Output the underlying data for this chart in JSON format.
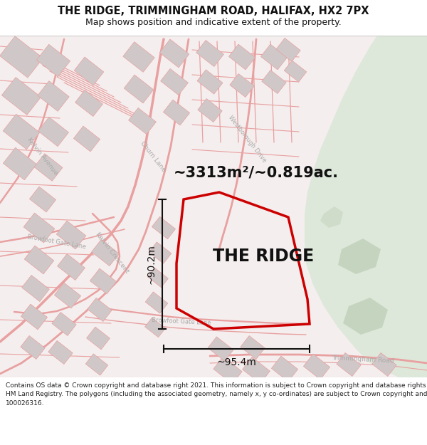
{
  "title": "THE RIDGE, TRIMMINGHAM ROAD, HALIFAX, HX2 7PX",
  "subtitle": "Map shows position and indicative extent of the property.",
  "footer_line1": "Contains OS data © Crown copyright and database right 2021. This information is subject to Crown copyright and database rights 2023 and is reproduced with the permission of",
  "footer_line2": "HM Land Registry. The polygons (including the associated geometry, namely x, y co-ordinates) are subject to Crown copyright and database rights 2023 Ordnance Survey",
  "footer_line3": "100026316.",
  "area_label": "~3313m²/~0.819ac.",
  "property_label": "THE RIDGE",
  "dim_horizontal": "~95.4m",
  "dim_vertical": "~90.2m",
  "map_bg": "#f5eeee",
  "road_color": "#e8a0a0",
  "road_fill": "#f0e8e8",
  "building_color": "#d0c8c8",
  "building_edge": "#e8a0a0",
  "green_color": "#dde8da",
  "green_dark": "#c5d4bf",
  "property_edge": "#cc0000",
  "dim_line_color": "#111111",
  "title_color": "#111111",
  "road_label_color": "#aaaaaa",
  "footer_color": "#222222"
}
